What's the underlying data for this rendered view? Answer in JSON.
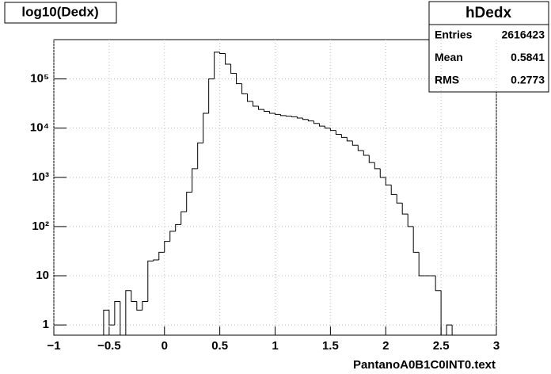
{
  "chart_data": {
    "type": "histogram",
    "title": "log10(Dedx)",
    "x_label": "PantanoA0B1C0INT0.text",
    "stats": {
      "name": "hDedx",
      "rows": [
        [
          "Entries",
          "2616423"
        ],
        [
          "Mean",
          "0.5841"
        ],
        [
          "RMS",
          "0.2773"
        ]
      ]
    },
    "log_y": true,
    "grid": true,
    "color": "#000000",
    "bins": [
      -1,
      -0.95,
      -0.9,
      -0.85,
      -0.8,
      -0.75,
      -0.7,
      -0.65,
      -0.6,
      -0.55,
      -0.5,
      -0.45,
      -0.4,
      -0.35,
      -0.3,
      -0.25,
      -0.2,
      -0.15,
      -0.1,
      -0.05,
      0,
      0.05,
      0.1,
      0.15,
      0.2,
      0.25,
      0.3,
      0.35,
      0.4,
      0.45,
      0.5,
      0.55,
      0.6,
      0.65,
      0.7,
      0.75,
      0.8,
      0.85,
      0.9,
      0.95,
      1,
      1.05,
      1.1,
      1.15,
      1.2,
      1.25,
      1.3,
      1.35,
      1.4,
      1.45,
      1.5,
      1.55,
      1.6,
      1.65,
      1.7,
      1.75,
      1.8,
      1.85,
      1.9,
      1.95,
      2,
      2.05,
      2.1,
      2.15,
      2.2,
      2.25,
      2.3,
      2.35,
      2.4,
      2.45,
      2.5,
      2.55,
      2.6,
      2.65,
      2.7,
      2.75,
      2.8,
      2.85,
      2.9,
      2.95,
      3
    ],
    "values": [
      0,
      0,
      0,
      0,
      0,
      0,
      0,
      0,
      0,
      2,
      1,
      3,
      0,
      5,
      3,
      2,
      3,
      20,
      21,
      30,
      50,
      80,
      110,
      200,
      500,
      1500,
      5000,
      20000,
      100000,
      350000,
      330000,
      200000,
      130000,
      80000,
      50000,
      35000,
      28000,
      24000,
      22000,
      20000,
      19000,
      18000,
      17500,
      17000,
      16000,
      15000,
      14000,
      12500,
      11000,
      10000,
      9000,
      7500,
      6500,
      5500,
      4500,
      3500,
      2800,
      2000,
      1500,
      1000,
      700,
      450,
      300,
      180,
      100,
      30,
      10,
      10,
      10,
      5,
      0,
      1,
      0,
      0,
      0,
      0,
      0,
      0,
      0,
      0
    ],
    "xlim": [
      -1,
      3
    ],
    "ylim": [
      0.62,
      630000
    ],
    "xticks": [
      {
        "value": -1,
        "label": "−1"
      },
      {
        "value": -0.5,
        "label": "−0.5"
      },
      0,
      0.5,
      1,
      1.5,
      2,
      2.5,
      3
    ],
    "yticks": [
      1,
      10,
      {
        "value": 100,
        "label": "10²"
      },
      {
        "value": 1000,
        "label": "10³"
      },
      {
        "value": 10000,
        "label": "10⁴"
      },
      {
        "value": 100000,
        "label": "10⁵"
      }
    ]
  }
}
